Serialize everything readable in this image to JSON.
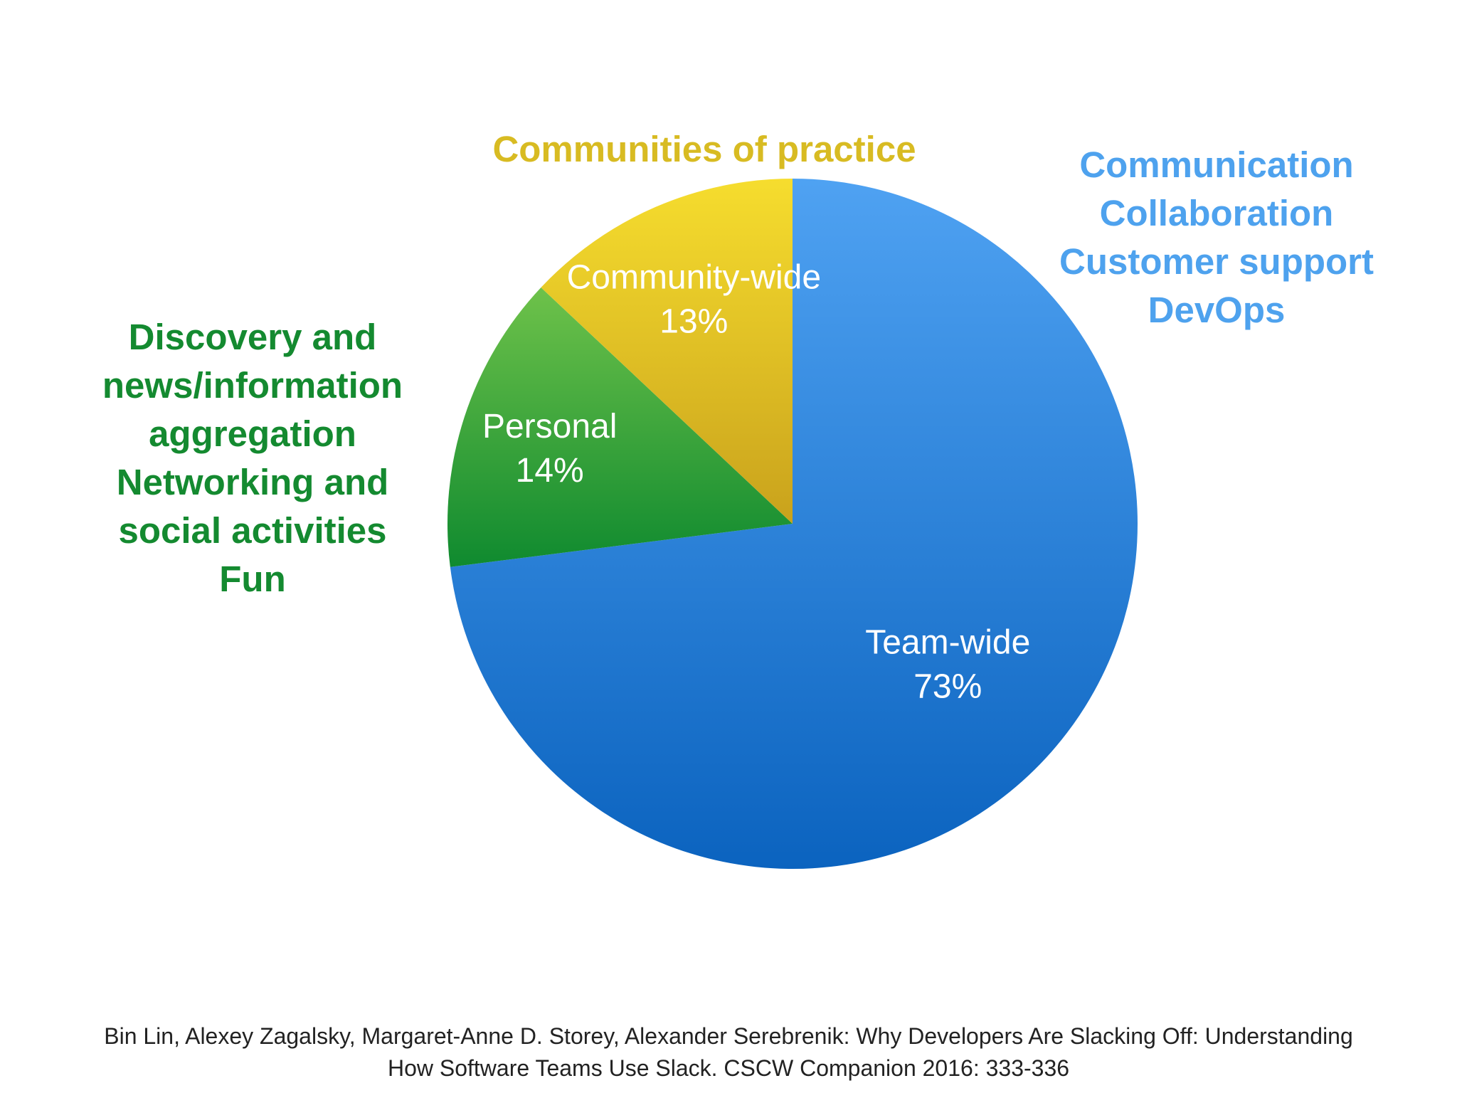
{
  "chart_data": {
    "type": "pie",
    "slices": [
      {
        "label": "Team-wide",
        "value": 73,
        "display": "73%",
        "color": "#2a82db",
        "gradient": [
          "#4fa2f2",
          "#0b63bf"
        ]
      },
      {
        "label": "Personal",
        "value": 14,
        "display": "14%",
        "color": "#2fa03a",
        "gradient": [
          "#6ec24a",
          "#0f8a2f"
        ]
      },
      {
        "label": "Community-wide",
        "value": 13,
        "display": "13%",
        "color": "#e0c22a",
        "gradient": [
          "#f6dd2e",
          "#c9a21c"
        ]
      }
    ],
    "start_angle_deg": 0,
    "direction": "clockwise"
  },
  "callouts": {
    "yellow": {
      "lines": [
        "Communities of practice"
      ],
      "color": "#d8bb22"
    },
    "blue": {
      "lines": [
        "Communication",
        "Collaboration",
        "Customer support",
        "DevOps"
      ],
      "color": "#4ea2ee"
    },
    "green": {
      "lines": [
        "Discovery and",
        "news/information",
        "aggregation",
        "Networking and",
        "social activities",
        "Fun"
      ],
      "color": "#148a30"
    }
  },
  "citation": {
    "line1": "Bin Lin, Alexey Zagalsky, Margaret-Anne D. Storey, Alexander Serebrenik: Why Developers Are Slacking Off: Understanding",
    "line2": "How Software Teams Use Slack. CSCW Companion 2016: 333-336"
  }
}
